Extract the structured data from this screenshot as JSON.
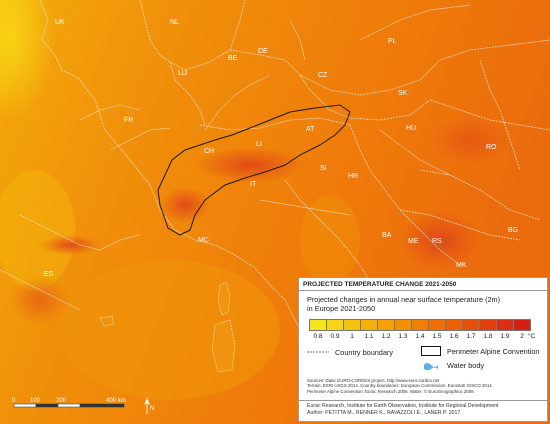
{
  "map_labels": {
    "uk": "UK",
    "nl": "NL",
    "de": "DE",
    "be": "BE",
    "lu": "LU",
    "fr": "FR",
    "pl": "PL",
    "cz": "CZ",
    "sk": "SK",
    "at": "AT",
    "ch": "CH",
    "li": "LI",
    "si": "SI",
    "hr": "HR",
    "it": "IT",
    "mc": "MC",
    "hu": "HU",
    "ro": "RO",
    "ba": "BA",
    "rs": "RS",
    "me": "ME",
    "bg": "BG",
    "mk": "MK",
    "es": "ES"
  },
  "legend": {
    "title": "PROJECTED TEMPERATURE CHANGE 2021-2050",
    "subtitle_line1": "Projected changes in annual near surface temperature (2m)",
    "subtitle_line2": "in Europe 2021-2050",
    "classes": [
      "0.8",
      "0.9",
      "1",
      "1.1",
      "1.2",
      "1.3",
      "1.4",
      "1.5",
      "1.6",
      "1.7",
      "1.8",
      "1.9",
      "2"
    ],
    "unit": "°C",
    "class_colors": [
      "#f4e61c",
      "#f8d414",
      "#f6c10c",
      "#f5b008",
      "#f5a006",
      "#f39004",
      "#f08004",
      "#ee7106",
      "#ea6108",
      "#e6500a",
      "#e0400e",
      "#d93012",
      "#d32016"
    ],
    "country_boundary": "Country boundary",
    "perimeter": "Perimeter Alpine Convention",
    "water_body": "Water body",
    "sources": [
      "Sources: Data: EURO-CORDEX project, http://www.euro-cordex.net",
      "Terrain: ESRI USGS 2014. Country boundaries: European Commission, Eurostat/ GISCO 2014.",
      "Perimeter Alpine Convention: Eurac Research 2006. Water: © EuroGeographics 2009."
    ],
    "credits": [
      "Eurac Research, Institute for Earth Observation, Institute for Regional Development",
      "Author: PETITTA M., RENNER K., RAVAZZOLI E., LANER P. 2017"
    ]
  },
  "scalebar": {
    "ticks": [
      "0",
      "100",
      "200",
      "400 km"
    ]
  },
  "north_arrow": "N"
}
